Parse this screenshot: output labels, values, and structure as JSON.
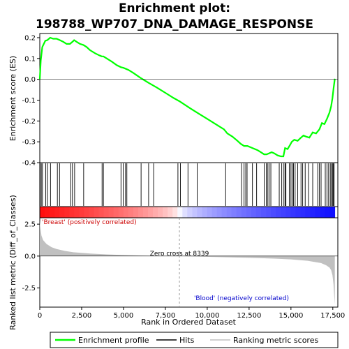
{
  "chart_data": {
    "type": "line",
    "title_line1": "Enrichment plot:",
    "title_line2": "198788_WP707_DNA_DAMAGE_RESPONSE",
    "xlabel": "Rank in Ordered Dataset",
    "ylabel_top": "Enrichment score (ES)",
    "ylabel_bottom": "Ranked list metric (Diff_of_Classes)",
    "xlim": [
      0,
      17800
    ],
    "x_ticks": [
      0,
      2500,
      5000,
      7500,
      10000,
      12500,
      15000,
      17500
    ],
    "x_tick_labels": [
      "0",
      "2,500",
      "5,000",
      "7,500",
      "10,000",
      "12,500",
      "15,000",
      "17,500"
    ],
    "es_ylim": [
      -0.4,
      0.22
    ],
    "es_ticks": [
      0.2,
      0.1,
      0.0,
      -0.1,
      -0.2,
      -0.3,
      -0.4
    ],
    "es_tick_labels": [
      "0.2",
      "0.1",
      "0.0",
      "-0.1",
      "-0.2",
      "-0.3",
      "-0.4"
    ],
    "metric_ylim": [
      -4.0,
      3.0
    ],
    "metric_ticks": [
      2.5,
      0.0,
      -2.5
    ],
    "metric_tick_labels": [
      "2.5",
      "0.0",
      "-2.5"
    ],
    "es_curve": {
      "x": [
        0,
        60,
        150,
        330,
        450,
        620,
        800,
        1000,
        1150,
        1400,
        1600,
        1800,
        1950,
        2050,
        2200,
        2400,
        2600,
        2800,
        3000,
        3300,
        3550,
        3700,
        3800,
        4000,
        4300,
        4600,
        4850,
        5000,
        5150,
        5300,
        5600,
        6000,
        6500,
        7000,
        7500,
        8000,
        8339,
        9000,
        9500,
        10000,
        10500,
        11000,
        11200,
        11500,
        11800,
        12000,
        12200,
        12400,
        12700,
        13000,
        13200,
        13400,
        13550,
        13700,
        13850,
        14000,
        14200,
        14400,
        14550,
        14650,
        14800,
        14950,
        15050,
        15200,
        15400,
        15600,
        15750,
        15900,
        16100,
        16300,
        16500,
        16700,
        16850,
        17000,
        17150,
        17300,
        17400,
        17480,
        17550,
        17620
      ],
      "y": [
        0.0,
        0.09,
        0.155,
        0.185,
        0.188,
        0.2,
        0.195,
        0.195,
        0.19,
        0.18,
        0.17,
        0.17,
        0.18,
        0.188,
        0.18,
        0.17,
        0.165,
        0.155,
        0.14,
        0.125,
        0.115,
        0.11,
        0.11,
        0.1,
        0.085,
        0.068,
        0.058,
        0.055,
        0.05,
        0.045,
        0.03,
        0.008,
        -0.017,
        -0.04,
        -0.065,
        -0.09,
        -0.105,
        -0.14,
        -0.165,
        -0.19,
        -0.215,
        -0.24,
        -0.26,
        -0.275,
        -0.295,
        -0.31,
        -0.32,
        -0.32,
        -0.33,
        -0.34,
        -0.35,
        -0.36,
        -0.36,
        -0.355,
        -0.35,
        -0.355,
        -0.365,
        -0.37,
        -0.37,
        -0.33,
        -0.335,
        -0.315,
        -0.3,
        -0.29,
        -0.295,
        -0.28,
        -0.27,
        -0.275,
        -0.28,
        -0.255,
        -0.26,
        -0.24,
        -0.21,
        -0.215,
        -0.19,
        -0.16,
        -0.13,
        -0.09,
        -0.04,
        0.003
      ]
    },
    "hits": [
      20,
      90,
      160,
      350,
      460,
      640,
      1050,
      1180,
      1850,
      1950,
      2080,
      2620,
      3720,
      3800,
      4850,
      4980,
      5120,
      5200,
      6050,
      6500,
      6800,
      8250,
      8400,
      8850,
      9400,
      11100,
      12050,
      12200,
      12300,
      12380,
      12700,
      12950,
      13400,
      13530,
      13620,
      13700,
      13800,
      14300,
      14450,
      14580,
      14650,
      14700,
      14900,
      15000,
      15080,
      15150,
      15250,
      15400,
      15600,
      15700,
      15850,
      16050,
      16300,
      16600,
      16700,
      16800,
      17050,
      17150,
      17250,
      17350,
      17420,
      17480,
      17530,
      17580
    ],
    "metric_curve": {
      "x": [
        0,
        30,
        100,
        200,
        400,
        700,
        1000,
        1500,
        2000,
        3000,
        4000,
        5000,
        6000,
        7000,
        8339,
        9500,
        11000,
        12500,
        14000,
        15000,
        16000,
        16800,
        17100,
        17300,
        17400,
        17480,
        17540,
        17580,
        17620
      ],
      "y": [
        2.8,
        2.3,
        1.6,
        1.25,
        0.95,
        0.7,
        0.55,
        0.4,
        0.3,
        0.2,
        0.13,
        0.08,
        0.04,
        0.015,
        0.0,
        -0.04,
        -0.09,
        -0.14,
        -0.2,
        -0.26,
        -0.37,
        -0.55,
        -0.72,
        -0.9,
        -1.1,
        -1.5,
        -2.2,
        -3.0,
        -3.8
      ]
    },
    "zero_cross_rank": 8339,
    "zero_cross_label": "Zero cross at 8339",
    "pos_label": "'Breast' (positively correlated)",
    "neg_label": "'Blood' (negatively correlated)",
    "legend": [
      "Enrichment profile",
      "Hits",
      "Ranking metric scores"
    ],
    "colors": {
      "es_line": "#00ff00",
      "hits": "#000000",
      "metric_fill": "#c0c0c0",
      "pos_label": "#cc0000",
      "neg_label": "#0000cc",
      "bar_positive": "#ff0000",
      "bar_negative": "#0000ff"
    }
  }
}
